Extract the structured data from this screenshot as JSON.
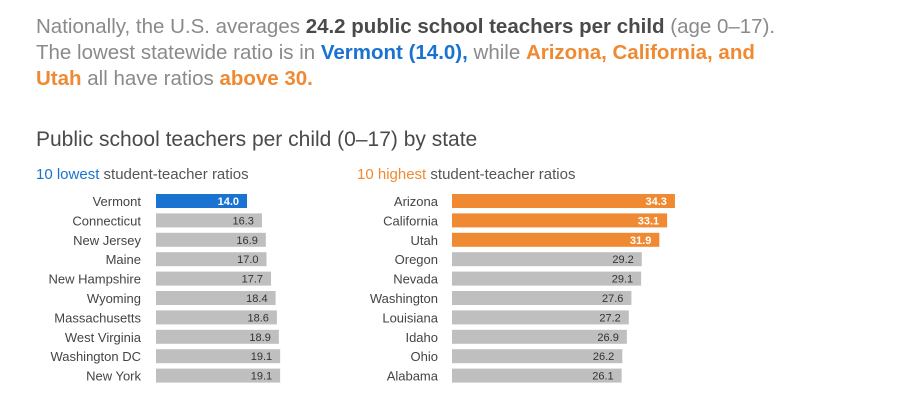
{
  "intro": {
    "l1_a": "Nationally, the U.S. averages ",
    "l1_b": "24.2 public school teachers per child",
    "l1_c": " (age 0–17).",
    "l2_a": "The lowest statewide ratio is in ",
    "l2_b": "Vermont (14.0),",
    "l2_c": " while ",
    "l2_d": "Arizona, California, and",
    "l3_a": "Utah",
    "l3_b": " all have ratios ",
    "l3_c": "above 30."
  },
  "chart_title": "Public school teachers per child (0–17) by state",
  "colors": {
    "highlight_low": "#1a73d1",
    "highlight_high": "#ef8a33",
    "base": "#bfbfbf"
  },
  "chart_data": [
    {
      "type": "bar",
      "orientation": "horizontal",
      "title_highlight": "10 lowest",
      "title_rest": " student-teacher ratios",
      "categories": [
        "Vermont",
        "Connecticut",
        "New Jersey",
        "Maine",
        "New Hampshire",
        "Wyoming",
        "Massachusetts",
        "West Virginia",
        "Washington DC",
        "New York"
      ],
      "values": [
        14.0,
        16.3,
        16.9,
        17.0,
        17.7,
        18.4,
        18.6,
        18.9,
        19.1,
        19.1
      ],
      "labels": [
        "14.0",
        "16.3",
        "16.9",
        "17.0",
        "17.7",
        "18.4",
        "18.6",
        "18.9",
        "19.1",
        "19.1"
      ],
      "highlighted": [
        true,
        false,
        false,
        false,
        false,
        false,
        false,
        false,
        false,
        false
      ],
      "highlight_color": "#1a73d1"
    },
    {
      "type": "bar",
      "orientation": "horizontal",
      "title_highlight": "10 highest",
      "title_rest": " student-teacher ratios",
      "categories": [
        "Arizona",
        "California",
        "Utah",
        "Oregon",
        "Nevada",
        "Washington",
        "Louisiana",
        "Idaho",
        "Ohio",
        "Alabama"
      ],
      "values": [
        34.3,
        33.1,
        31.9,
        29.2,
        29.1,
        27.6,
        27.2,
        26.9,
        26.2,
        26.1
      ],
      "labels": [
        "34.3",
        "33.1",
        "31.9",
        "29.2",
        "29.1",
        "27.6",
        "27.2",
        "26.9",
        "26.2",
        "26.1"
      ],
      "highlighted": [
        true,
        true,
        true,
        false,
        false,
        false,
        false,
        false,
        false,
        false
      ],
      "highlight_color": "#ef8a33"
    }
  ]
}
